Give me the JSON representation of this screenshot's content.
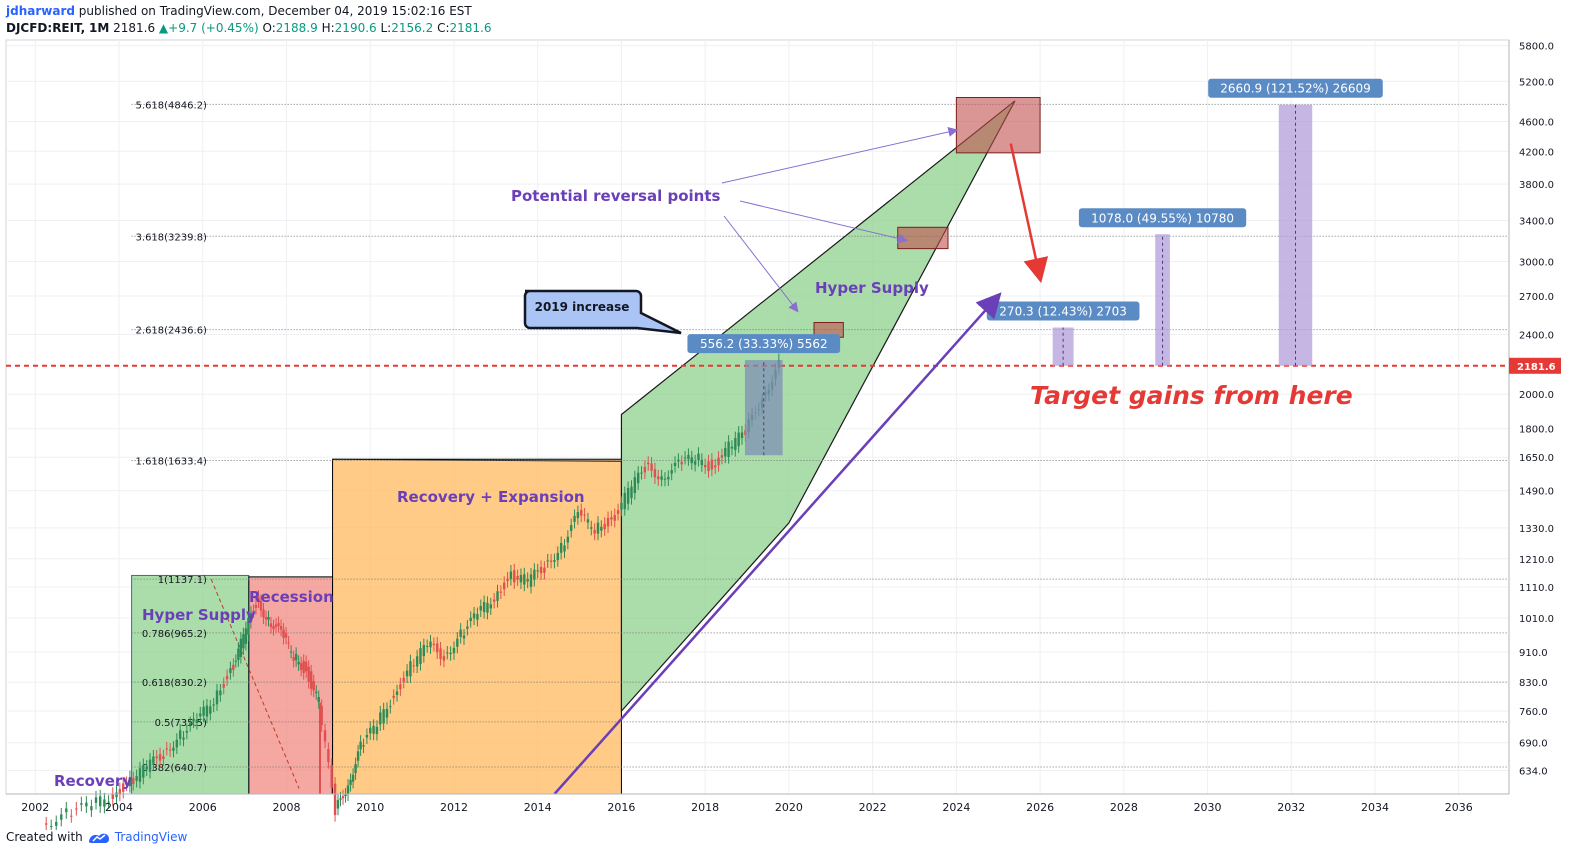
{
  "header": {
    "author": "jdharward",
    "published_text": "published on TradingView.com, December 04, 2019 15:02:16 EST",
    "symbol": "DJCFD:REIT",
    "interval": "1M",
    "last": "2181.6",
    "change": "+9.7 (+0.45%)",
    "open_label": "O:",
    "open": "2188.9",
    "high_label": "H:",
    "high": "2190.6",
    "low_label": "L:",
    "low": "2156.2",
    "close_label": "C:",
    "close": "2181.6"
  },
  "footer": {
    "created_with": "Created with",
    "brand": "TradingView"
  },
  "colors": {
    "green_zone": "#8fd18f",
    "orange_zone": "#ffb95e",
    "red_zone": "#f28b82",
    "purple_text": "#6a3fb8",
    "arrow_purple": "#6a3fb8",
    "price_line": "#e53935",
    "target_bar": "#b39ddb",
    "measure_label": "#5b8bc4",
    "candle_up": "#2e8b57",
    "candle_down": "#e05050"
  },
  "chart_data": {
    "type": "candlestick",
    "x_axis": {
      "ticks": [
        "2002",
        "2004",
        "2006",
        "2008",
        "2010",
        "2012",
        "2014",
        "2016",
        "2018",
        "2020",
        "2022",
        "2024",
        "2026",
        "2028",
        "2030",
        "2032",
        "2034",
        "2036"
      ],
      "range": [
        2001.3,
        2037.2
      ]
    },
    "y_axis": {
      "scale": "log",
      "ticks": [
        "5800.0",
        "5200.0",
        "4600.0",
        "4200.0",
        "3800.0",
        "3400.0",
        "3000.0",
        "2700.0",
        "2400.0",
        "2000.0",
        "1800.0",
        "1650.0",
        "1490.0",
        "1330.0",
        "1210.0",
        "1110.0",
        "1010.0",
        "910.0",
        "830.0",
        "760.0",
        "690.0",
        "634.0"
      ],
      "range": [
        590,
        5900
      ],
      "current_price_label": "2181.6",
      "current_price": 2181.6
    },
    "fib_levels": [
      {
        "label": "5.618(4846.2)",
        "price": 4846.2
      },
      {
        "label": "3.618(3239.8)",
        "price": 3239.8
      },
      {
        "label": "2.618(2436.6)",
        "price": 2436.6
      },
      {
        "label": "1.618(1633.4)",
        "price": 1633.4
      },
      {
        "label": "1(1137.1)",
        "price": 1137.1
      },
      {
        "label": "0.786(965.2)",
        "price": 965.2
      },
      {
        "label": "0.618(830.2)",
        "price": 830.2
      },
      {
        "label": "0.5(735.5)",
        "price": 735.5
      },
      {
        "label": "0.382(640.7)",
        "price": 640.7
      }
    ],
    "zones": [
      {
        "name": "Hyper Supply",
        "color": "green",
        "x": [
          2004.3,
          2007.1
        ],
        "y": [
          590,
          1150
        ]
      },
      {
        "name": "Recession",
        "color": "red",
        "x": [
          2007.1,
          2009.1
        ],
        "y": [
          590,
          1145
        ]
      },
      {
        "name": "Recovery + Expansion",
        "color": "orange",
        "x": [
          2009.1,
          2016.0
        ],
        "y": [
          590,
          1640
        ]
      },
      {
        "name": "Hyper Supply",
        "color": "green",
        "polygon": true
      }
    ],
    "annotations": {
      "recovery_label": "Recovery",
      "hyper_supply_left": "Hyper Supply",
      "recession": "Recession",
      "recovery_expansion": "Recovery + Expansion",
      "hyper_supply_right": "Hyper Supply",
      "potential_reversal": "Potential reversal points",
      "callout_2019": "2019 increase",
      "target_gains": "Target gains from here"
    },
    "measures": [
      {
        "label": "556.2 (33.33%) 5562",
        "x": [
          2018.95,
          2019.85
        ],
        "y": [
          1660,
          2220
        ]
      },
      {
        "label": "270.3 (12.43%) 2703",
        "x": [
          2026.3,
          2026.8
        ],
        "y": [
          2181.6,
          2452
        ]
      },
      {
        "label": "1078.0 (49.55%) 10780",
        "x": [
          2028.75,
          2029.1
        ],
        "y": [
          2181.6,
          3260
        ]
      },
      {
        "label": "2660.9 (121.52%) 26609",
        "x": [
          2031.7,
          2032.5
        ],
        "y": [
          2181.6,
          4842
        ]
      }
    ],
    "reversal_boxes": [
      {
        "x": [
          2024.0,
          2026.0
        ],
        "y": [
          4180,
          4950
        ]
      },
      {
        "x": [
          2022.6,
          2023.8
        ],
        "y": [
          3120,
          3330
        ]
      },
      {
        "x": [
          2020.6,
          2021.3
        ],
        "y": [
          2380,
          2490
        ]
      }
    ],
    "price_series": [
      [
        2002.2,
        538
      ],
      [
        2002.8,
        555
      ],
      [
        2003.4,
        570
      ],
      [
        2003.9,
        590
      ],
      [
        2004.3,
        612
      ],
      [
        2004.7,
        640
      ],
      [
        2005.1,
        668
      ],
      [
        2005.5,
        708
      ],
      [
        2005.9,
        735
      ],
      [
        2006.3,
        790
      ],
      [
        2006.7,
        860
      ],
      [
        2007.0,
        950
      ],
      [
        2007.3,
        1060
      ],
      [
        2007.6,
        1010
      ],
      [
        2007.9,
        960
      ],
      [
        2008.2,
        900
      ],
      [
        2008.5,
        860
      ],
      [
        2008.8,
        780
      ],
      [
        2009.2,
        560
      ],
      [
        2009.5,
        610
      ],
      [
        2009.8,
        680
      ],
      [
        2010.2,
        730
      ],
      [
        2010.6,
        800
      ],
      [
        2011.0,
        870
      ],
      [
        2011.4,
        930
      ],
      [
        2011.8,
        900
      ],
      [
        2012.2,
        960
      ],
      [
        2012.6,
        1020
      ],
      [
        2013.0,
        1080
      ],
      [
        2013.4,
        1150
      ],
      [
        2013.8,
        1130
      ],
      [
        2014.2,
        1180
      ],
      [
        2014.6,
        1260
      ],
      [
        2015.0,
        1380
      ],
      [
        2015.4,
        1330
      ],
      [
        2015.8,
        1360
      ],
      [
        2016.2,
        1480
      ],
      [
        2016.6,
        1600
      ],
      [
        2017.0,
        1560
      ],
      [
        2017.4,
        1610
      ],
      [
        2017.8,
        1650
      ],
      [
        2018.2,
        1600
      ],
      [
        2018.6,
        1700
      ],
      [
        2019.0,
        1780
      ],
      [
        2019.4,
        1990
      ],
      [
        2019.8,
        2181.6
      ]
    ]
  }
}
